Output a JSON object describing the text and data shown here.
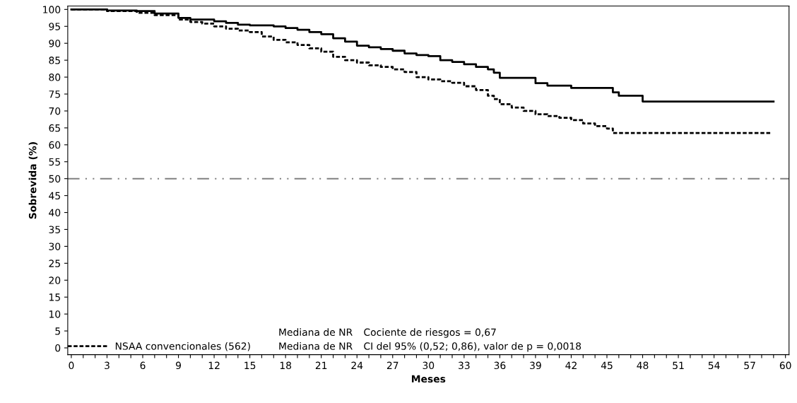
{
  "chart_data": {
    "type": "step",
    "xlabel": "Meses",
    "ylabel": "Sobrevida (%)",
    "series": [
      {
        "color": "#000000",
        "line_style": "solid",
        "x": [
          0,
          3,
          5.5,
          7,
          9,
          10,
          12,
          13,
          14,
          15,
          17,
          18,
          19,
          20,
          21,
          22,
          23,
          24,
          25,
          26,
          27,
          28,
          29,
          30,
          31,
          32,
          33,
          34,
          35,
          35.5,
          36,
          38,
          39,
          40,
          42,
          45,
          45.5,
          46,
          48,
          59
        ],
        "values": [
          100,
          99.7,
          99.5,
          98.8,
          97.5,
          97,
          96.5,
          96,
          95.5,
          95.3,
          95,
          94.5,
          94,
          93.3,
          92.7,
          91.5,
          90.5,
          89.3,
          88.8,
          88.3,
          87.8,
          87,
          86.5,
          86.2,
          85,
          84.5,
          83.8,
          83,
          82.3,
          81.3,
          79.8,
          79.8,
          78.2,
          77.5,
          76.8,
          76.8,
          75.5,
          74.5,
          72.8,
          72.8
        ]
      },
      {
        "name": "NSAA convencionales (562)",
        "color": "#000000",
        "line_style": "dashed",
        "x": [
          0,
          3,
          5.5,
          7,
          9,
          10,
          11,
          12,
          13,
          14,
          15,
          16,
          17,
          18,
          19,
          20,
          21,
          22,
          23,
          24,
          25,
          26,
          27,
          28,
          29,
          30,
          31,
          32,
          33,
          34,
          35,
          35.5,
          36,
          37,
          38,
          39,
          40,
          41,
          42,
          43,
          44,
          45,
          45.5,
          58.8
        ],
        "values": [
          100,
          99.5,
          99,
          98.3,
          97,
          96.3,
          95.8,
          95,
          94.3,
          93.8,
          93.3,
          92,
          91,
          90.3,
          89.5,
          88.5,
          87.5,
          86,
          85,
          84.3,
          83.5,
          83,
          82.3,
          81.5,
          80,
          79.3,
          78.8,
          78.3,
          77.3,
          76.2,
          74.5,
          73.5,
          72,
          71,
          70,
          69,
          68.5,
          68,
          67.3,
          66.3,
          65.5,
          64.8,
          63.5,
          63.5
        ]
      }
    ],
    "xlim": [
      -0.3,
      60.3
    ],
    "ylim": [
      -2,
      101
    ],
    "xticks": [
      0,
      {
        "value": 1,
        "label": null
      },
      {
        "value": 2,
        "label": null
      },
      3,
      {
        "value": 4,
        "label": null
      },
      {
        "value": 5,
        "label": null
      },
      6,
      {
        "value": 7,
        "label": null
      },
      {
        "value": 8,
        "label": null
      },
      9,
      {
        "value": 10,
        "label": null
      },
      {
        "value": 11,
        "label": null
      },
      12,
      {
        "value": 13,
        "label": null
      },
      {
        "value": 14,
        "label": null
      },
      15,
      {
        "value": 16,
        "label": null
      },
      {
        "value": 17,
        "label": null
      },
      18,
      {
        "value": 19,
        "label": null
      },
      {
        "value": 20,
        "label": null
      },
      21,
      {
        "value": 22,
        "label": null
      },
      {
        "value": 23,
        "label": null
      },
      24,
      {
        "value": 25,
        "label": null
      },
      {
        "value": 26,
        "label": null
      },
      27,
      {
        "value": 28,
        "label": null
      },
      {
        "value": 29,
        "label": null
      },
      30,
      {
        "value": 31,
        "label": null
      },
      {
        "value": 32,
        "label": null
      },
      33,
      {
        "value": 34,
        "label": null
      },
      {
        "value": 35,
        "label": null
      },
      36,
      {
        "value": 37,
        "label": null
      },
      {
        "value": 38,
        "label": null
      },
      39,
      {
        "value": 40,
        "label": null
      },
      {
        "value": 41,
        "label": null
      },
      42,
      {
        "value": 43,
        "label": null
      },
      {
        "value": 44,
        "label": null
      },
      45,
      {
        "value": 46,
        "label": null
      },
      {
        "value": 47,
        "label": null
      },
      48,
      {
        "value": 49,
        "label": null
      },
      {
        "value": 50,
        "label": null
      },
      51,
      {
        "value": 52,
        "label": null
      },
      {
        "value": 53,
        "label": null
      },
      54,
      {
        "value": 55,
        "label": null
      },
      {
        "value": 56,
        "label": null
      },
      57,
      {
        "value": 58,
        "label": null
      },
      {
        "value": 59,
        "label": null
      },
      60
    ],
    "yticks": [
      0,
      5,
      10,
      15,
      20,
      25,
      30,
      35,
      40,
      45,
      50,
      55,
      60,
      65,
      70,
      75,
      80,
      85,
      90,
      95,
      100
    ],
    "ref_lines": [
      {
        "axis": "y",
        "value": 50,
        "color": "#808080",
        "line_style": "dashdot"
      }
    ],
    "legend": "bottom left",
    "grid": false,
    "annotations": [
      "Mediana de NR",
      "Cociente de riesgos = 0,67",
      "Mediana de NR",
      "CI del 95% (0,52; 0,86), valor de p = 0,0018"
    ]
  }
}
